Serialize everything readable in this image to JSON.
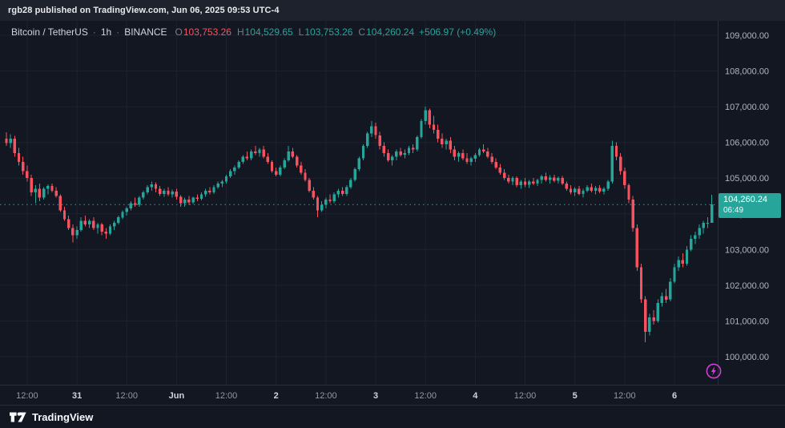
{
  "topbar": {
    "text": "rgb28 published on TradingView.com, Jun 06, 2025 09:53 UTC-4"
  },
  "legend": {
    "symbol": "Bitcoin / TetherUS",
    "separator": "·",
    "interval": "1h",
    "exchange": "BINANCE",
    "ohlc": [
      {
        "label": "O",
        "value": "103,753.26",
        "color": "#f7525f"
      },
      {
        "label": "H",
        "value": "104,529.65",
        "color": "#26a69a"
      },
      {
        "label": "L",
        "value": "103,753.26",
        "color": "#26a69a"
      },
      {
        "label": "C",
        "value": "104,260.24",
        "color": "#26a69a"
      }
    ],
    "change": {
      "text": "+506.97 (+0.49%)",
      "color": "#26a69a"
    }
  },
  "price_label": {
    "price": "104,260.24",
    "countdown": "06:49",
    "bg": "#26a69a"
  },
  "footer": {
    "brand": "TradingView"
  },
  "icons": {
    "flash": "flash-icon",
    "flash_color": "#d13ddc",
    "logo": "tradingview-logo"
  },
  "chart_data": {
    "type": "candlestick",
    "title": "Bitcoin / TetherUS · 1h · BINANCE",
    "up_color": "#26a69a",
    "down_color": "#f7525f",
    "grid_color": "#1e2230",
    "axis_text_color": "#b2b5be",
    "time_text_color": "#9598a1",
    "time_major_color": "#d1d4dc",
    "border_color": "#2a2e39",
    "last_price": 104260.24,
    "price_axis": {
      "min": 100000,
      "max": 109000,
      "step": 1000
    },
    "time_ticks": [
      {
        "i": 5,
        "label": "12:00",
        "major": false
      },
      {
        "i": 17,
        "label": "31",
        "major": true
      },
      {
        "i": 29,
        "label": "12:00",
        "major": false
      },
      {
        "i": 41,
        "label": "Jun",
        "major": true
      },
      {
        "i": 53,
        "label": "12:00",
        "major": false
      },
      {
        "i": 65,
        "label": "2",
        "major": true
      },
      {
        "i": 77,
        "label": "12:00",
        "major": false
      },
      {
        "i": 89,
        "label": "3",
        "major": true
      },
      {
        "i": 101,
        "label": "12:00",
        "major": false
      },
      {
        "i": 113,
        "label": "4",
        "major": true
      },
      {
        "i": 125,
        "label": "12:00",
        "major": false
      },
      {
        "i": 137,
        "label": "5",
        "major": true
      },
      {
        "i": 149,
        "label": "12:00",
        "major": false
      },
      {
        "i": 161,
        "label": "6",
        "major": true
      }
    ],
    "candles": [
      [
        106100,
        106280,
        105900,
        105980
      ],
      [
        105980,
        106230,
        105850,
        106100
      ],
      [
        106100,
        106180,
        105600,
        105700
      ],
      [
        105700,
        105850,
        105350,
        105450
      ],
      [
        105450,
        105600,
        105100,
        105200
      ],
      [
        105200,
        105350,
        104900,
        105000
      ],
      [
        105000,
        105100,
        104500,
        104600
      ],
      [
        104600,
        104800,
        104300,
        104700
      ],
      [
        104700,
        104850,
        104350,
        104450
      ],
      [
        104450,
        104750,
        104400,
        104700
      ],
      [
        104700,
        104820,
        104550,
        104780
      ],
      [
        104780,
        104850,
        104600,
        104650
      ],
      [
        104650,
        104750,
        104450,
        104500
      ],
      [
        104500,
        104550,
        104050,
        104100
      ],
      [
        104100,
        104200,
        103800,
        103850
      ],
      [
        103850,
        103950,
        103550,
        103600
      ],
      [
        103600,
        103700,
        103200,
        103400
      ],
      [
        103400,
        103650,
        103300,
        103550
      ],
      [
        103550,
        103900,
        103500,
        103800
      ],
      [
        103800,
        103950,
        103650,
        103700
      ],
      [
        103700,
        103850,
        103600,
        103800
      ],
      [
        103800,
        103900,
        103550,
        103600
      ],
      [
        103600,
        103750,
        103450,
        103700
      ],
      [
        103700,
        103750,
        103400,
        103500
      ],
      [
        103500,
        103600,
        103300,
        103450
      ],
      [
        103450,
        103700,
        103400,
        103650
      ],
      [
        103650,
        103800,
        103550,
        103750
      ],
      [
        103750,
        103950,
        103700,
        103900
      ],
      [
        103900,
        104100,
        103850,
        104050
      ],
      [
        104050,
        104200,
        103950,
        104150
      ],
      [
        104150,
        104350,
        104100,
        104300
      ],
      [
        104300,
        104450,
        104200,
        104250
      ],
      [
        104250,
        104500,
        104200,
        104450
      ],
      [
        104450,
        104650,
        104400,
        104600
      ],
      [
        104600,
        104800,
        104550,
        104750
      ],
      [
        104750,
        104900,
        104650,
        104820
      ],
      [
        104820,
        104880,
        104600,
        104700
      ],
      [
        104700,
        104780,
        104500,
        104560
      ],
      [
        104560,
        104700,
        104480,
        104650
      ],
      [
        104650,
        104750,
        104500,
        104550
      ],
      [
        104550,
        104680,
        104450,
        104620
      ],
      [
        104620,
        104700,
        104400,
        104480
      ],
      [
        104480,
        104520,
        104200,
        104300
      ],
      [
        104300,
        104450,
        104200,
        104400
      ],
      [
        104400,
        104500,
        104250,
        104320
      ],
      [
        104320,
        104480,
        104280,
        104450
      ],
      [
        104450,
        104550,
        104350,
        104420
      ],
      [
        104420,
        104600,
        104380,
        104550
      ],
      [
        104550,
        104700,
        104480,
        104650
      ],
      [
        104650,
        104750,
        104550,
        104600
      ],
      [
        104600,
        104800,
        104560,
        104750
      ],
      [
        104750,
        104900,
        104700,
        104850
      ],
      [
        104850,
        104950,
        104750,
        104900
      ],
      [
        104900,
        105100,
        104850,
        105050
      ],
      [
        105050,
        105250,
        105000,
        105200
      ],
      [
        105200,
        105350,
        105100,
        105300
      ],
      [
        105300,
        105500,
        105250,
        105450
      ],
      [
        105450,
        105650,
        105400,
        105600
      ],
      [
        105600,
        105750,
        105500,
        105550
      ],
      [
        105550,
        105800,
        105500,
        105750
      ],
      [
        105750,
        105900,
        105650,
        105700
      ],
      [
        105700,
        105850,
        105600,
        105800
      ],
      [
        105800,
        105900,
        105550,
        105600
      ],
      [
        105600,
        105700,
        105400,
        105450
      ],
      [
        105450,
        105500,
        105150,
        105200
      ],
      [
        105200,
        105300,
        105050,
        105100
      ],
      [
        105100,
        105350,
        105050,
        105300
      ],
      [
        105300,
        105550,
        105250,
        105500
      ],
      [
        105500,
        105900,
        105450,
        105750
      ],
      [
        105750,
        105850,
        105550,
        105600
      ],
      [
        105600,
        105650,
        105300,
        105350
      ],
      [
        105350,
        105450,
        105100,
        105150
      ],
      [
        105150,
        105250,
        104900,
        104950
      ],
      [
        104950,
        105000,
        104600,
        104650
      ],
      [
        104650,
        104750,
        104400,
        104450
      ],
      [
        104450,
        104500,
        103900,
        104100
      ],
      [
        104100,
        104350,
        104050,
        104250
      ],
      [
        104250,
        104450,
        104150,
        104400
      ],
      [
        104400,
        104550,
        104300,
        104350
      ],
      [
        104350,
        104600,
        104300,
        104550
      ],
      [
        104550,
        104700,
        104450,
        104650
      ],
      [
        104650,
        104750,
        104500,
        104560
      ],
      [
        104560,
        104800,
        104500,
        104750
      ],
      [
        104750,
        105000,
        104700,
        104950
      ],
      [
        104950,
        105300,
        104900,
        105250
      ],
      [
        105250,
        105600,
        105200,
        105550
      ],
      [
        105550,
        105950,
        105500,
        105900
      ],
      [
        105900,
        106300,
        105850,
        106250
      ],
      [
        106250,
        106600,
        106150,
        106450
      ],
      [
        106450,
        106550,
        106100,
        106200
      ],
      [
        106200,
        106300,
        105800,
        105900
      ],
      [
        105900,
        106000,
        105600,
        105700
      ],
      [
        105700,
        105800,
        105450,
        105500
      ],
      [
        105500,
        105650,
        105350,
        105600
      ],
      [
        105600,
        105800,
        105500,
        105750
      ],
      [
        105750,
        105850,
        105600,
        105650
      ],
      [
        105650,
        105800,
        105550,
        105700
      ],
      [
        105700,
        105900,
        105650,
        105850
      ],
      [
        105850,
        105950,
        105700,
        105800
      ],
      [
        105800,
        106200,
        105750,
        106150
      ],
      [
        106150,
        106650,
        106100,
        106600
      ],
      [
        106600,
        107000,
        106500,
        106900
      ],
      [
        106900,
        106950,
        106400,
        106500
      ],
      [
        106500,
        106750,
        106250,
        106350
      ],
      [
        106350,
        106500,
        106000,
        106100
      ],
      [
        106100,
        106250,
        105850,
        105950
      ],
      [
        105950,
        106100,
        105800,
        106050
      ],
      [
        106050,
        106150,
        105700,
        105800
      ],
      [
        105800,
        105900,
        105500,
        105600
      ],
      [
        105600,
        105750,
        105450,
        105700
      ],
      [
        105700,
        105800,
        105500,
        105550
      ],
      [
        105550,
        105700,
        105400,
        105450
      ],
      [
        105450,
        105600,
        105350,
        105550
      ],
      [
        105550,
        105700,
        105450,
        105650
      ],
      [
        105650,
        105850,
        105600,
        105800
      ],
      [
        105800,
        105950,
        105700,
        105750
      ],
      [
        105750,
        105850,
        105550,
        105600
      ],
      [
        105600,
        105700,
        105400,
        105450
      ],
      [
        105450,
        105550,
        105250,
        105300
      ],
      [
        105300,
        105400,
        105100,
        105150
      ],
      [
        105150,
        105250,
        104950,
        105000
      ],
      [
        105000,
        105100,
        104850,
        104900
      ],
      [
        104900,
        105050,
        104800,
        105000
      ],
      [
        105000,
        105050,
        104750,
        104800
      ],
      [
        104800,
        104950,
        104700,
        104900
      ],
      [
        104900,
        105000,
        104750,
        104820
      ],
      [
        104820,
        104950,
        104720,
        104900
      ],
      [
        104900,
        105000,
        104800,
        104850
      ],
      [
        104850,
        104980,
        104780,
        104950
      ],
      [
        104950,
        105100,
        104850,
        105050
      ],
      [
        105050,
        105150,
        104900,
        104950
      ],
      [
        104950,
        105080,
        104850,
        105020
      ],
      [
        105020,
        105100,
        104880,
        104930
      ],
      [
        104930,
        105050,
        104850,
        105000
      ],
      [
        105000,
        105060,
        104800,
        104850
      ],
      [
        104850,
        104900,
        104650,
        104700
      ],
      [
        104700,
        104800,
        104550,
        104600
      ],
      [
        104600,
        104750,
        104500,
        104700
      ],
      [
        104700,
        104780,
        104520,
        104560
      ],
      [
        104560,
        104700,
        104450,
        104650
      ],
      [
        104650,
        104800,
        104600,
        104750
      ],
      [
        104750,
        104850,
        104600,
        104650
      ],
      [
        104650,
        104780,
        104550,
        104720
      ],
      [
        104720,
        104800,
        104580,
        104620
      ],
      [
        104620,
        104750,
        104550,
        104700
      ],
      [
        104700,
        104950,
        104650,
        104900
      ],
      [
        104900,
        106050,
        104850,
        105900
      ],
      [
        105900,
        106000,
        105500,
        105600
      ],
      [
        105600,
        105700,
        105100,
        105200
      ],
      [
        105200,
        105300,
        104700,
        104800
      ],
      [
        104800,
        104850,
        104300,
        104400
      ],
      [
        104400,
        104500,
        103500,
        103600
      ],
      [
        103600,
        103700,
        102400,
        102500
      ],
      [
        102500,
        102600,
        101500,
        101600
      ],
      [
        101600,
        101700,
        100400,
        100700
      ],
      [
        100700,
        101200,
        100600,
        101100
      ],
      [
        101100,
        101300,
        100900,
        101000
      ],
      [
        101000,
        101600,
        100950,
        101500
      ],
      [
        101500,
        101800,
        101400,
        101700
      ],
      [
        101700,
        101900,
        101500,
        101600
      ],
      [
        101600,
        102200,
        101550,
        102100
      ],
      [
        102100,
        102600,
        102050,
        102500
      ],
      [
        102500,
        102800,
        102400,
        102700
      ],
      [
        102700,
        102900,
        102500,
        102600
      ],
      [
        102600,
        103100,
        102550,
        103000
      ],
      [
        103000,
        103400,
        102950,
        103300
      ],
      [
        103300,
        103500,
        103150,
        103400
      ],
      [
        103400,
        103700,
        103300,
        103600
      ],
      [
        103600,
        103800,
        103450,
        103750
      ],
      [
        103750,
        103900,
        103600,
        103753.26
      ],
      [
        103753.26,
        104529.65,
        103753.26,
        104260.24
      ]
    ]
  }
}
